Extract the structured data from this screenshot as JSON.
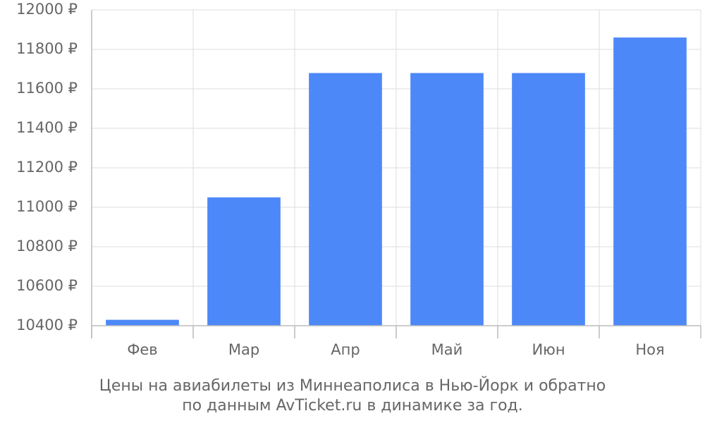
{
  "chart_data": {
    "type": "bar",
    "categories": [
      "Фев",
      "Мар",
      "Апр",
      "Май",
      "Июн",
      "Ноя"
    ],
    "values": [
      10430,
      11050,
      11680,
      11680,
      11680,
      11860
    ],
    "color": "#4d88f9",
    "ylim": [
      10400,
      12000
    ],
    "yticks": [
      {
        "value": 10400,
        "label": "10400 ₽"
      },
      {
        "value": 10600,
        "label": "10600 ₽"
      },
      {
        "value": 10800,
        "label": "10800 ₽"
      },
      {
        "value": 11000,
        "label": "11000 ₽"
      },
      {
        "value": 11200,
        "label": "11200 ₽"
      },
      {
        "value": 11400,
        "label": "11400 ₽"
      },
      {
        "value": 11600,
        "label": "11600 ₽"
      },
      {
        "value": 11800,
        "label": "11800 ₽"
      },
      {
        "value": 12000,
        "label": "12000 ₽"
      }
    ],
    "grid": true,
    "caption": [
      "Цены на авиабилеты из Миннеаполиса в Нью-Йорк и обратно",
      "по данным AvTicket.ru в динамике за год."
    ]
  }
}
